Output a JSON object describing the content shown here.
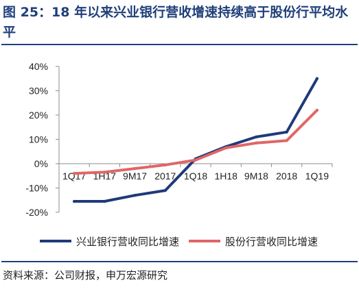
{
  "figure": {
    "title": "图 25：18 年以来兴业银行营收增速持续高于股份行平均水平",
    "source": "资料来源：公司财报，申万宏源研究",
    "accent_color": "#1f3f7a"
  },
  "chart_data": {
    "type": "line",
    "title": "",
    "xlabel": "",
    "ylabel": "",
    "categories": [
      "1Q17",
      "1H17",
      "9M17",
      "2017",
      "1Q18",
      "1H18",
      "9M18",
      "2018",
      "1Q19"
    ],
    "ylim": [
      -20,
      40
    ],
    "y_ticks": [
      -20,
      -10,
      0,
      10,
      20,
      30,
      40
    ],
    "y_tick_labels": [
      "-20%",
      "-10%",
      "0%",
      "10%",
      "20%",
      "30%",
      "40%"
    ],
    "grid": false,
    "legend_position": "bottom",
    "series": [
      {
        "name": "兴业银行营收同比增速",
        "color": "#1f3a7a",
        "values": [
          -15.5,
          -15.5,
          -13,
          -11,
          2,
          7,
          11,
          13,
          35
        ]
      },
      {
        "name": "股份行营收同比增速",
        "color": "#e06666",
        "values": [
          -4,
          -3.5,
          -2,
          -0.5,
          1.5,
          6.5,
          8.5,
          9.5,
          22
        ]
      }
    ]
  }
}
